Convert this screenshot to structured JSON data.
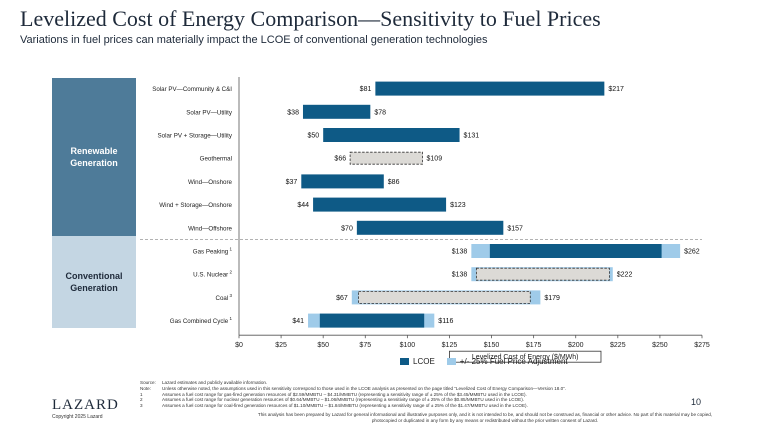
{
  "header": {
    "title": "Levelized Cost of Energy Comparison—Sensitivity to Fuel Prices",
    "subtitle": "Variations in fuel prices can materially impact the LCOE of conventional generation technologies"
  },
  "groups": {
    "renewable": "Renewable Generation",
    "conventional": "Conventional Generation"
  },
  "colors": {
    "lcoe": "#0e5a86",
    "fuel_adj": "#9fcbe9",
    "group_renewable": "#4e7b99",
    "group_conventional": "#c4d6e3",
    "dashed_fill": "#dcdad6"
  },
  "chart_data": {
    "type": "bar",
    "orientation": "horizontal-range",
    "xlabel": "Levelized Cost of Energy ($/MWh)",
    "xlim": [
      0,
      275
    ],
    "xticks": [
      "$0",
      "$25",
      "$50",
      "$75",
      "$100",
      "$125",
      "$150",
      "$175",
      "$200",
      "$225",
      "$250",
      "$275"
    ],
    "legend": [
      "LCOE",
      "+/- 25% Fuel Price Adjustment"
    ],
    "legend_position": "bottom",
    "rows": [
      {
        "label": "Solar PV—Community & C&I",
        "low": 81,
        "high": 217,
        "low_label": "$81",
        "high_label": "$217",
        "style": "solid"
      },
      {
        "label": "Solar PV—Utility",
        "low": 38,
        "high": 78,
        "low_label": "$38",
        "high_label": "$78",
        "style": "solid"
      },
      {
        "label": "Solar PV + Storage—Utility",
        "low": 50,
        "high": 131,
        "low_label": "$50",
        "high_label": "$131",
        "style": "solid"
      },
      {
        "label": "Geothermal",
        "low": 66,
        "high": 109,
        "low_label": "$66",
        "high_label": "$109",
        "style": "dashed"
      },
      {
        "label": "Wind—Onshore",
        "low": 37,
        "high": 86,
        "low_label": "$37",
        "high_label": "$86",
        "style": "solid"
      },
      {
        "label": "Wind + Storage—Onshore",
        "low": 44,
        "high": 123,
        "low_label": "$44",
        "high_label": "$123",
        "style": "solid"
      },
      {
        "label": "Wind—Offshore",
        "low": 70,
        "high": 157,
        "low_label": "$70",
        "high_label": "$157",
        "style": "solid"
      },
      {
        "label": "Gas Peaking",
        "sup": "1",
        "low": 138,
        "high": 262,
        "lcoe_low": 149,
        "lcoe_high": 251,
        "low_label": "$138",
        "high_label": "$262",
        "style": "solid"
      },
      {
        "label": "U.S. Nuclear",
        "sup": "2",
        "low": 138,
        "high": 222,
        "lcoe_low": 141,
        "lcoe_high": 220,
        "low_label": "$138",
        "high_label": "$222",
        "style": "dashed"
      },
      {
        "label": "Coal",
        "sup": "3",
        "low": 67,
        "high": 179,
        "lcoe_low": 71,
        "lcoe_high": 173,
        "low_label": "$67",
        "high_label": "$179",
        "style": "dashed"
      },
      {
        "label": "Gas Combined Cycle",
        "sup": "1",
        "low": 41,
        "high": 116,
        "lcoe_low": 48,
        "lcoe_high": 110,
        "low_label": "$41",
        "high_label": "$116",
        "style": "solid"
      }
    ]
  },
  "footnotes": [
    {
      "key": "Source:",
      "text": "Lazard estimates and publicly available information."
    },
    {
      "key": "Note:",
      "text": "Unless otherwise noted, the assumptions used in this sensitivity correspond to those used in the LCOE analysis as presented on the page titled “Levelized Cost of Energy Comparison—Version 18.0”."
    },
    {
      "key": "1",
      "text": "Assumes a fuel cost range for gas-fired generation resources of $2.59/MMBTU – $4.31/MMBTU (representing a sensitivity range of ± 25% of the $3.45/MMBTU used in the LCOE)."
    },
    {
      "key": "2",
      "text": "Assumes a fuel cost range for nuclear generation resources of $0.64/MMBTU – $1.06/MMBTU (representing a sensitivity range of ± 25% of the $0.85/MMBTU used in the LCOE)."
    },
    {
      "key": "3",
      "text": "Assumes a fuel cost range for coal-fired generation resources of $1.10/MMBTU – $1.84/MMBTU (representing a sensitivity range of ± 25% of the $1.47/MMBTU used in the LCOE)."
    }
  ],
  "disclaimer": "This analysis has been prepared by Lazard for general informational and illustrative purposes only, and it is not intended to be, and should not be construed as, financial or other advice. No part of this material may be copied, photocopied or duplicated in any form by any means or redistributed without the prior written consent of Lazard.",
  "brand": {
    "logo": "LAZARD",
    "copyright": "Copyright 2025 Lazard"
  },
  "page_number": "10"
}
